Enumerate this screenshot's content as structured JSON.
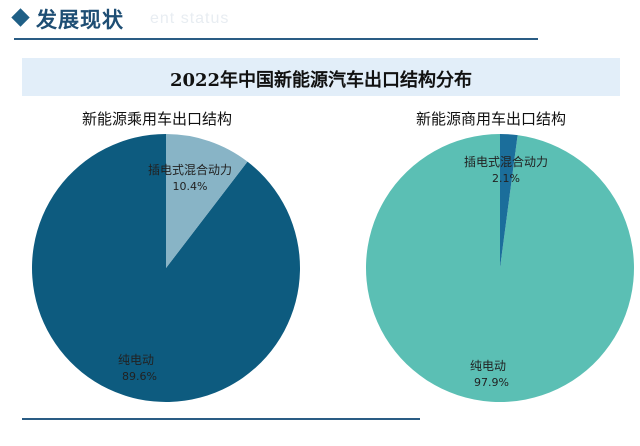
{
  "header": {
    "title": "发展现状",
    "subtitle": "ent status"
  },
  "banner": {
    "title": "2022年中国新能源汽车出口结构分布"
  },
  "chart_data": [
    {
      "type": "pie",
      "title": "新能源乘用车出口结构",
      "slices": [
        {
          "label": "纯电动",
          "value": 89.6,
          "value_label": "89.6%",
          "color": "#0d5b7f"
        },
        {
          "label": "插电式混合动力",
          "value": 10.4,
          "value_label": "10.4%",
          "color": "#88b4c6"
        }
      ]
    },
    {
      "type": "pie",
      "title": "新能源商用车出口结构",
      "slices": [
        {
          "label": "纯电动",
          "value": 97.9,
          "value_label": "97.9%",
          "color": "#5bbfb4"
        },
        {
          "label": "插电式混合动力",
          "value": 2.1,
          "value_label": "2.1%",
          "color": "#1b6e9b"
        }
      ]
    }
  ]
}
